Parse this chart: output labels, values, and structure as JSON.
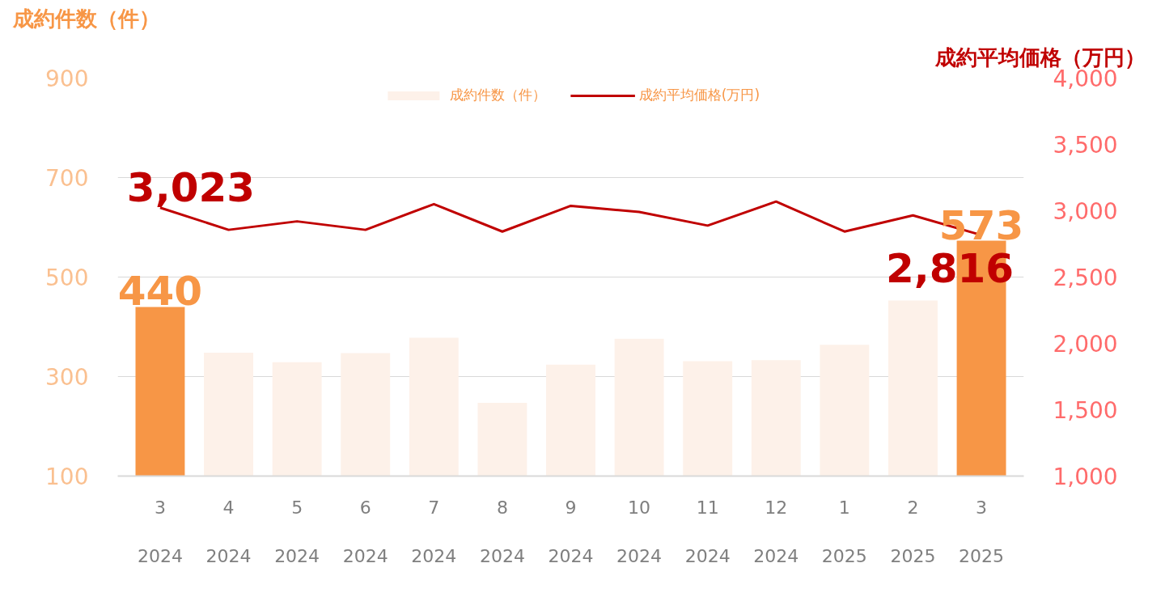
{
  "chart_data": {
    "type": "bar",
    "ylabel": "成約件数（件）",
    "y2label": "成約平均価格（万円）",
    "categories": [
      "3\n2024",
      "4\n2024",
      "5\n2024",
      "6\n2024",
      "7\n2024",
      "8\n2024",
      "9\n2024",
      "10\n2024",
      "11\n2024",
      "12\n2024",
      "1\n2025",
      "2\n2025",
      "3\n2025"
    ],
    "series": [
      {
        "name": "成約件数（件）",
        "colors": [
          "#f79646",
          "#fdf1e9",
          "#fdf1e9",
          "#fdf1e9",
          "#fdf1e9",
          "#fdf1e9",
          "#fdf1e9",
          "#fdf1e9",
          "#fdf1e9",
          "#fdf1e9",
          "#fdf1e9",
          "#fdf1e9",
          "#f79646"
        ],
        "color": "#fdf1e9",
        "values": [
          440,
          348,
          329,
          347,
          378,
          247,
          324,
          376,
          331,
          333,
          364,
          453,
          573
        ],
        "value_labels": [
          "440",
          null,
          null,
          null,
          null,
          null,
          null,
          null,
          null,
          null,
          null,
          null,
          "573"
        ]
      },
      {
        "name": "成約平均価格(万円)",
        "type": "line",
        "axis": "y2",
        "color": "#c00000",
        "values": [
          3023,
          2856,
          2920,
          2856,
          3050,
          2843,
          3037,
          2991,
          2888,
          3069,
          2843,
          2965,
          2816
        ],
        "value_labels": [
          "3,023",
          null,
          null,
          null,
          null,
          null,
          null,
          null,
          null,
          null,
          null,
          null,
          "2,816"
        ]
      }
    ],
    "ylim": [
      100,
      900
    ],
    "yticks": [
      100,
      300,
      500,
      700,
      900
    ],
    "y2lim": [
      1000,
      4000
    ],
    "y2ticks": [
      {
        "value": 1000,
        "label": "1,000"
      },
      {
        "value": 1500,
        "label": "1,500"
      },
      {
        "value": 2000,
        "label": "2,000"
      },
      {
        "value": 2500,
        "label": "2,500"
      },
      {
        "value": 3000,
        "label": "3,000"
      },
      {
        "value": 3500,
        "label": "3,500"
      },
      {
        "value": 4000,
        "label": "4,000"
      }
    ],
    "grid": "y",
    "legend": "top"
  }
}
